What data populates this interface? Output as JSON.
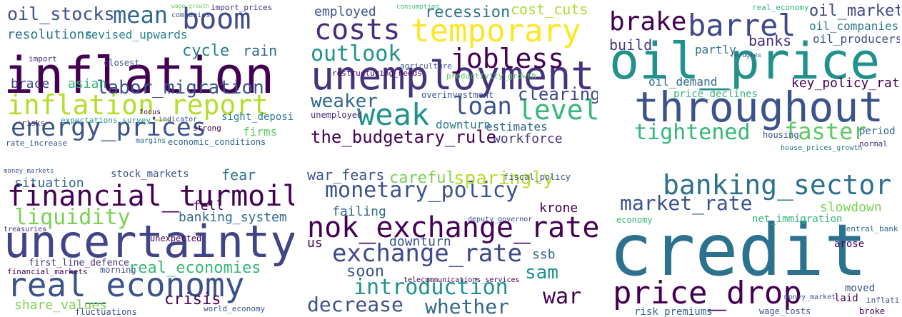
{
  "panels": [
    {
      "words": [
        {
          "text": "inflation",
          "color": "#440154"
        },
        {
          "text": "oil_stocks",
          "color": "#3b528b"
        },
        {
          "text": "mean",
          "color": "#31688e"
        },
        {
          "text": "boom",
          "color": "#3e4a89"
        },
        {
          "text": "resolutions",
          "color": "#2c728e"
        },
        {
          "text": "revised_upwards",
          "color": "#26828e"
        },
        {
          "text": "cycle",
          "color": "#27808e"
        },
        {
          "text": "rain",
          "color": "#31688e"
        },
        {
          "text": "labor_migration",
          "color": "#3b528b"
        },
        {
          "text": "inflation_report",
          "color": "#b5de2b"
        },
        {
          "text": "energy_prices",
          "color": "#3b528b"
        },
        {
          "text": "brace",
          "color": "#414487"
        },
        {
          "text": "asian",
          "color": "#35b779"
        },
        {
          "text": "firms",
          "color": "#5ec962"
        },
        {
          "text": "sight_deposit",
          "color": "#2a788e"
        },
        {
          "text": "economic_conditions",
          "color": "#31688e"
        },
        {
          "text": "import_prices",
          "color": "#472c7a"
        },
        {
          "text": "companies",
          "color": "#3b528b"
        },
        {
          "text": "wage_growth",
          "color": "#6ece58"
        },
        {
          "text": "strong",
          "color": "#440154"
        },
        {
          "text": "margins",
          "color": "#31688e"
        },
        {
          "text": "risks",
          "color": "#472c7a"
        },
        {
          "text": "rate_increase",
          "color": "#3b528b"
        },
        {
          "text": "focus",
          "color": "#440154"
        },
        {
          "text": "indicator",
          "color": "#3e4989"
        },
        {
          "text": "closest",
          "color": "#3b528b"
        },
        {
          "text": "import",
          "color": "#472c7a"
        },
        {
          "text": "expectations_survey",
          "color": "#21918c"
        }
      ]
    },
    {
      "words": [
        {
          "text": "unemployment",
          "color": "#46337e"
        },
        {
          "text": "temporary",
          "color": "#fde725"
        },
        {
          "text": "costs",
          "color": "#472d7b"
        },
        {
          "text": "outlook",
          "color": "#21918c"
        },
        {
          "text": "jobless",
          "color": "#440154"
        },
        {
          "text": "employed",
          "color": "#3b528b"
        },
        {
          "text": "recession",
          "color": "#2c728e"
        },
        {
          "text": "cost_cuts",
          "color": "#addc30"
        },
        {
          "text": "weaker",
          "color": "#31688e"
        },
        {
          "text": "weak",
          "color": "#21918c"
        },
        {
          "text": "loan",
          "color": "#3b528b"
        },
        {
          "text": "level",
          "color": "#35b779"
        },
        {
          "text": "clearing",
          "color": "#3e4989"
        },
        {
          "text": "the_budgetary_rule",
          "color": "#440154"
        },
        {
          "text": "workforce",
          "color": "#443983"
        },
        {
          "text": "downturn",
          "color": "#2a788e"
        },
        {
          "text": "estimates",
          "color": "#31688e"
        },
        {
          "text": "unemployed",
          "color": "#472c7a"
        },
        {
          "text": "overinvestment",
          "color": "#3b528b"
        },
        {
          "text": "restructuring_needs",
          "color": "#440154"
        },
        {
          "text": "agriculture",
          "color": "#3b528b"
        },
        {
          "text": "productivity_growth",
          "color": "#5ec962"
        },
        {
          "text": "consumption",
          "color": "#35b779"
        }
      ]
    },
    {
      "words": [
        {
          "text": "oil_price",
          "color": "#21918c"
        },
        {
          "text": "throughout",
          "color": "#3b528b"
        },
        {
          "text": "brake",
          "color": "#440154"
        },
        {
          "text": "barrel",
          "color": "#3e4a89"
        },
        {
          "text": "build",
          "color": "#443983"
        },
        {
          "text": "partly",
          "color": "#2c728e"
        },
        {
          "text": "banks",
          "color": "#472c7a"
        },
        {
          "text": "oil_market",
          "color": "#3e4989"
        },
        {
          "text": "oil_companies",
          "color": "#2a788e"
        },
        {
          "text": "oil_producers",
          "color": "#3b528b"
        },
        {
          "text": "key_policy_rate",
          "color": "#440154"
        },
        {
          "text": "tightened",
          "color": "#35b779"
        },
        {
          "text": "faster",
          "color": "#5ec962"
        },
        {
          "text": "oil_demand",
          "color": "#31688e"
        },
        {
          "text": "price_declines",
          "color": "#35b779"
        },
        {
          "text": "housing",
          "color": "#3b528b"
        },
        {
          "text": "period",
          "color": "#31688e"
        },
        {
          "text": "normal",
          "color": "#472c7a"
        },
        {
          "text": "house_prices_growth",
          "color": "#2a788e"
        },
        {
          "text": "real_economy",
          "color": "#35b779"
        },
        {
          "text": "refugees",
          "color": "#3b528b"
        }
      ]
    },
    {
      "words": [
        {
          "text": "uncertainty",
          "color": "#414487"
        },
        {
          "text": "financial_turmoil",
          "color": "#440154"
        },
        {
          "text": "liquidity",
          "color": "#7ad151"
        },
        {
          "text": "situation",
          "color": "#31688e"
        },
        {
          "text": "stock_markets",
          "color": "#3b528b"
        },
        {
          "text": "fell",
          "color": "#440154"
        },
        {
          "text": "fear",
          "color": "#2c728e"
        },
        {
          "text": "banking_system",
          "color": "#31688e"
        },
        {
          "text": "real_economies",
          "color": "#35b779"
        },
        {
          "text": "real_economy",
          "color": "#3b528b"
        },
        {
          "text": "share_values",
          "color": "#7ad151"
        },
        {
          "text": "crisis",
          "color": "#440154"
        },
        {
          "text": "fluctuations",
          "color": "#3b528b"
        },
        {
          "text": "first_line_defence",
          "color": "#472c7a"
        },
        {
          "text": "financial_markets",
          "color": "#440154"
        },
        {
          "text": "morning",
          "color": "#3b528b"
        },
        {
          "text": "world_economy",
          "color": "#3b528b"
        },
        {
          "text": "unexpected",
          "color": "#440154"
        },
        {
          "text": "treasuries",
          "color": "#472c7a"
        },
        {
          "text": "money_markets",
          "color": "#3b528b"
        }
      ]
    },
    {
      "words": [
        {
          "text": "nok_exchange_rate",
          "color": "#440154"
        },
        {
          "text": "monetary_policy",
          "color": "#3b528b"
        },
        {
          "text": "careful",
          "color": "#7ad151"
        },
        {
          "text": "sparingly",
          "color": "#b5de2b"
        },
        {
          "text": "war_fears",
          "color": "#3b528b"
        },
        {
          "text": "exchange_rate",
          "color": "#3e4989"
        },
        {
          "text": "failing",
          "color": "#31688e"
        },
        {
          "text": "krone",
          "color": "#440154"
        },
        {
          "text": "fiscal_policy",
          "color": "#3b528b"
        },
        {
          "text": "downturn",
          "color": "#3b528b"
        },
        {
          "text": "us",
          "color": "#440154"
        },
        {
          "text": "ssb",
          "color": "#31688e"
        },
        {
          "text": "sam",
          "color": "#21918c"
        },
        {
          "text": "soon",
          "color": "#3b528b"
        },
        {
          "text": "introduction",
          "color": "#21918c"
        },
        {
          "text": "war",
          "color": "#440154"
        },
        {
          "text": "decrease",
          "color": "#3b528b"
        },
        {
          "text": "whether",
          "color": "#31688e"
        },
        {
          "text": "telecommunications_services",
          "color": "#440154"
        },
        {
          "text": "deputy_governor",
          "color": "#3b528b"
        }
      ]
    },
    {
      "words": [
        {
          "text": "credit",
          "color": "#2c728e"
        },
        {
          "text": "banking_sector",
          "color": "#2c728e"
        },
        {
          "text": "market_rate",
          "color": "#3b528b"
        },
        {
          "text": "price_drop",
          "color": "#440154"
        },
        {
          "text": "slowdown",
          "color": "#7ad151"
        },
        {
          "text": "net_immigration",
          "color": "#35b779"
        },
        {
          "text": "economy",
          "color": "#35b779"
        },
        {
          "text": "risk_premiums",
          "color": "#31688e"
        },
        {
          "text": "wage_costs",
          "color": "#3b528b"
        },
        {
          "text": "laid",
          "color": "#440154"
        },
        {
          "text": "broke",
          "color": "#440154"
        },
        {
          "text": "moved",
          "color": "#3b528b"
        },
        {
          "text": "inflation",
          "color": "#3b528b"
        },
        {
          "text": "central_bank",
          "color": "#31688e"
        },
        {
          "text": "arose",
          "color": "#440154"
        },
        {
          "text": "money_market",
          "color": "#3b528b"
        }
      ]
    }
  ]
}
